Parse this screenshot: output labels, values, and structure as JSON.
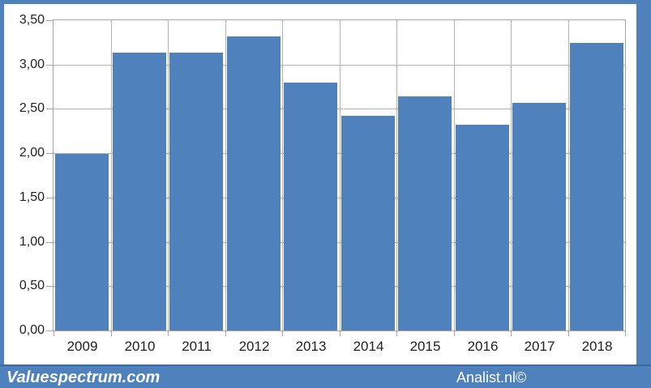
{
  "footer": {
    "left_text": "Valuespectrum.com",
    "right_text": "Analist.nl©"
  },
  "colors": {
    "bar": "#4f81bd",
    "frame": "#4f81bd",
    "banner": "#4f81bd",
    "banner_top_edge": "#3a67a3",
    "gridline": "#b3b3b3",
    "axis": "#a6a6a6",
    "label_text": "#1f1f1f",
    "plot_background": "#ffffff",
    "watermark_text": "#ffffff"
  },
  "chart_data": {
    "type": "bar",
    "title": "",
    "categories": [
      "2009",
      "2010",
      "2011",
      "2012",
      "2013",
      "2014",
      "2015",
      "2016",
      "2017",
      "2018"
    ],
    "values": [
      1.99,
      3.13,
      3.13,
      3.32,
      2.8,
      2.42,
      2.64,
      2.32,
      2.57,
      3.24
    ],
    "xlabel": "",
    "ylabel": "",
    "ylim": [
      0,
      3.5
    ],
    "y_tick_interval": 0.5,
    "y_tick_labels": [
      "0,00",
      "0,50",
      "1,00",
      "1,50",
      "2,00",
      "2,50",
      "3,00",
      "3,50"
    ],
    "decimal_separator": ",",
    "grid": true,
    "vertical_gridlines": true,
    "legend_position": "none",
    "bar_color": "#4f81bd"
  }
}
